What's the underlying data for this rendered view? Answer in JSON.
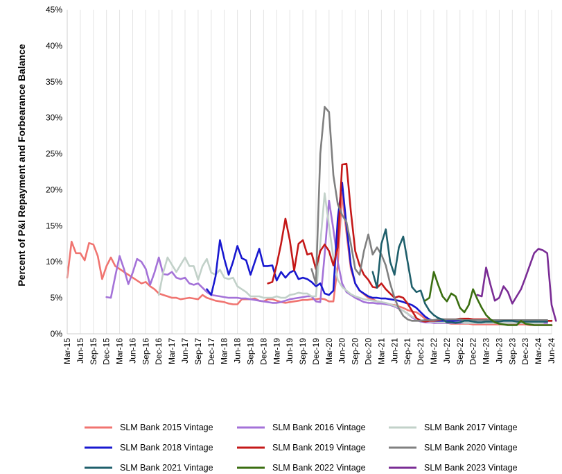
{
  "chart_data": {
    "type": "line",
    "title": "",
    "xlabel": "",
    "ylabel": "Percent of P&I Repayment and Forbearance  Balance",
    "ylim": [
      0,
      45
    ],
    "yticks": [
      "0%",
      "5%",
      "10%",
      "15%",
      "20%",
      "25%",
      "30%",
      "35%",
      "40%",
      "45%"
    ],
    "x_ticks": [
      "Mar-15",
      "Jun-15",
      "Sep-15",
      "Dec-15",
      "Mar-16",
      "Jun-16",
      "Sep-16",
      "Dec-16",
      "Mar-17",
      "Jun-17",
      "Sep-17",
      "Dec-17",
      "Mar-18",
      "Jun-18",
      "Sep-18",
      "Dec-18",
      "Mar-19",
      "Jun-19",
      "Sep-19",
      "Dec-19",
      "Mar-20",
      "Jun-20",
      "Sep-20",
      "Dec-20",
      "Mar-21",
      "Jun-21",
      "Sep-21",
      "Dec-21",
      "Mar-22",
      "Jun-22",
      "Sep-22",
      "Dec-22",
      "Mar-23",
      "Jun-23",
      "Sep-23",
      "Dec-23",
      "Mar-24",
      "Jun-24"
    ],
    "grid": "vertical",
    "legend_position": "bottom",
    "series": [
      {
        "name": "SLM Bank 2015 Vintage",
        "color": "#f07470",
        "start": "Mar-15",
        "values": [
          7.8,
          12.8,
          11.2,
          11.2,
          10.2,
          12.6,
          12.4,
          10.8,
          7.6,
          9.4,
          10.6,
          9.4,
          9.0,
          8.6,
          8.2,
          7.8,
          7.4,
          7.0,
          7.2,
          6.6,
          6.2,
          5.6,
          5.4,
          5.2,
          5.0,
          5.0,
          4.8,
          4.9,
          5.0,
          4.9,
          4.8,
          5.4,
          5.0,
          4.8,
          4.6,
          4.5,
          4.4,
          4.2,
          4.1,
          4.1,
          4.8,
          4.8,
          4.8,
          4.9,
          4.6,
          4.5,
          4.8,
          4.8,
          4.6,
          4.4,
          4.3,
          4.4,
          4.5,
          4.6,
          4.7,
          4.7,
          4.8,
          4.8,
          4.9,
          4.8,
          4.5,
          4.5,
          9.5,
          19.5,
          14.0,
          9.0,
          7.0,
          6.0,
          5.5,
          5.0,
          4.8,
          4.5,
          4.4,
          4.2,
          4.1,
          4.0,
          3.8,
          3.6,
          3.3,
          3.1,
          3.0,
          2.6,
          2.1,
          1.8,
          1.6,
          1.5,
          1.5,
          1.5,
          1.4,
          1.4,
          1.4,
          1.4,
          1.4,
          1.3,
          1.3,
          1.3,
          1.3,
          1.3,
          1.3,
          1.3,
          1.3,
          1.3,
          1.3,
          1.3,
          1.3,
          1.3,
          1.2,
          1.2,
          1.2,
          1.2,
          1.2,
          1.2
        ]
      },
      {
        "name": "SLM Bank 2016 Vintage",
        "color": "#a472d8",
        "start": "Dec-15",
        "values": [
          5.1,
          5.0,
          8.0,
          10.8,
          9.0,
          6.9,
          8.5,
          10.4,
          10.0,
          9.0,
          6.8,
          8.5,
          10.6,
          8.3,
          8.2,
          8.6,
          7.8,
          7.6,
          7.8,
          7.0,
          6.8,
          7.0,
          6.4,
          5.8,
          5.4,
          5.3,
          5.2,
          5.1,
          5.0,
          5.0,
          5.0,
          4.9,
          4.9,
          4.8,
          4.7,
          4.6,
          4.5,
          4.4,
          4.3,
          4.3,
          4.4,
          4.6,
          4.8,
          4.9,
          5.0,
          5.1,
          5.2,
          5.2,
          4.5,
          4.4,
          11.0,
          18.5,
          14.5,
          10.0,
          7.0,
          5.8,
          5.4,
          5.0,
          4.7,
          4.4,
          4.3,
          4.3,
          4.2,
          4.2,
          4.1,
          4.0,
          3.8,
          3.5,
          3.2,
          2.8,
          2.3,
          1.9,
          1.7,
          1.6,
          1.6,
          1.5,
          1.5,
          1.5,
          1.5,
          1.5,
          1.5,
          1.5,
          1.5,
          1.5,
          1.5,
          1.5,
          1.5,
          1.5,
          1.5,
          1.5,
          1.5,
          1.5,
          1.5,
          1.5,
          1.5,
          1.5,
          1.5,
          1.5,
          1.5,
          1.5,
          1.5,
          1.5
        ]
      },
      {
        "name": "SLM Bank 2017 Vintage",
        "color": "#c2d1c9",
        "start": "Dec-16",
        "values": [
          5.4,
          8.5,
          10.6,
          9.6,
          8.6,
          9.6,
          10.6,
          9.4,
          9.4,
          7.5,
          9.4,
          10.4,
          8.5,
          8.2,
          8.9,
          7.8,
          7.6,
          7.8,
          6.6,
          6.2,
          5.8,
          5.2,
          5.2,
          5.2,
          5.0,
          5.0,
          5.0,
          5.2,
          5.0,
          5.0,
          5.4,
          5.5,
          5.7,
          5.6,
          5.6,
          5.2,
          5.2,
          12.5,
          19.5,
          15.0,
          10.5,
          7.5,
          6.5,
          6.0,
          5.5,
          5.2,
          5.0,
          4.8,
          4.7,
          4.6,
          4.5,
          4.4,
          4.3,
          4.1,
          3.9,
          3.6,
          3.2,
          2.8,
          2.4,
          2.1,
          1.9,
          1.8,
          1.7,
          1.7,
          1.6,
          1.6,
          1.6,
          1.6,
          1.6,
          1.6,
          1.5,
          1.5,
          1.5,
          1.5,
          1.5,
          1.5,
          1.5,
          1.5,
          1.5,
          1.5,
          1.5,
          1.5,
          1.5,
          1.5,
          1.5,
          1.5,
          1.5,
          1.5,
          1.5
        ]
      },
      {
        "name": "SLM Bank 2018 Vintage",
        "color": "#1818d0",
        "start": "Nov-17",
        "values": [
          6.2,
          5.4,
          8.0,
          13.0,
          10.4,
          8.2,
          10.0,
          12.2,
          10.5,
          10.2,
          8.2,
          10.0,
          11.8,
          9.4,
          9.4,
          9.5,
          7.4,
          8.6,
          7.8,
          8.5,
          8.8,
          7.6,
          7.8,
          7.6,
          7.2,
          6.6,
          7.0,
          5.6,
          5.4,
          6.0,
          16.0,
          21.0,
          15.0,
          9.5,
          7.0,
          6.0,
          5.6,
          5.2,
          5.0,
          5.0,
          4.9,
          4.9,
          4.8,
          4.7,
          4.6,
          4.4,
          4.2,
          4.0,
          3.6,
          3.0,
          2.4,
          2.0,
          1.8,
          1.8,
          1.8,
          1.8,
          1.8,
          1.8,
          1.9,
          1.9,
          1.9,
          1.9,
          1.9,
          1.9,
          1.9,
          1.9,
          1.8,
          1.8,
          1.8,
          1.8,
          1.8,
          1.8,
          1.8,
          1.8,
          1.8,
          1.8,
          1.8,
          1.8,
          1.8,
          1.8
        ]
      },
      {
        "name": "SLM Bank 2019 Vintage",
        "color": "#c41818",
        "start": "Jan-19",
        "values": [
          7.0,
          7.2,
          9.6,
          12.5,
          16.0,
          13.0,
          8.8,
          12.5,
          13.0,
          11.0,
          11.2,
          9.0,
          11.5,
          12.4,
          11.5,
          9.5,
          12.0,
          23.5,
          23.6,
          17.0,
          11.5,
          9.5,
          8.2,
          7.5,
          6.5,
          6.4,
          7.0,
          6.2,
          5.6,
          5.0,
          5.2,
          5.0,
          4.2,
          3.2,
          2.2,
          1.8,
          1.7,
          1.8,
          1.8,
          1.9,
          2.0,
          2.0,
          2.0,
          2.0,
          2.1,
          2.1,
          2.1,
          2.0,
          2.0,
          2.0,
          2.0,
          1.9,
          1.9,
          1.9,
          1.9,
          1.9,
          1.9,
          1.9,
          1.9,
          1.9,
          1.9,
          1.9,
          1.8,
          1.8,
          1.8,
          1.8
        ]
      },
      {
        "name": "SLM Bank 2020 Vintage",
        "color": "#808080",
        "start": "Nov-19",
        "values": [
          9.0,
          7.0,
          25.0,
          31.5,
          30.8,
          22.0,
          18.0,
          16.5,
          15.5,
          12.5,
          9.0,
          8.2,
          11.5,
          13.8,
          11.0,
          12.0,
          11.0,
          9.5,
          7.0,
          5.0,
          3.5,
          2.5,
          2.0,
          1.8,
          1.8,
          1.8,
          1.9,
          1.9,
          1.9,
          2.0,
          2.0,
          2.0,
          2.0,
          2.0,
          2.0,
          1.9,
          1.9,
          1.9,
          1.9,
          1.9,
          1.9,
          1.9,
          1.9,
          1.9,
          1.9,
          1.9,
          1.9,
          1.9,
          1.9,
          1.9,
          1.9,
          1.9,
          1.9,
          1.9,
          1.9
        ]
      },
      {
        "name": "SLM Bank 2021 Vintage",
        "color": "#1f5f6b",
        "start": "Jan-21",
        "values": [
          8.6,
          6.4,
          12.5,
          14.5,
          10.0,
          8.2,
          12.0,
          13.5,
          10.0,
          6.5,
          5.8,
          6.0,
          4.2,
          3.2,
          2.6,
          2.2,
          2.0,
          1.6,
          1.6,
          1.5,
          1.6,
          1.8,
          1.8,
          1.7,
          1.6,
          1.6,
          1.7,
          1.7,
          1.7,
          1.7,
          1.8,
          1.8,
          1.8,
          1.7,
          1.7,
          1.7,
          1.7,
          1.7,
          1.7,
          1.7,
          1.7
        ]
      },
      {
        "name": "SLM Bank 2022 Vintage",
        "color": "#3a6e10",
        "start": "Jan-22",
        "values": [
          4.6,
          5.0,
          8.6,
          6.8,
          5.2,
          4.5,
          5.6,
          5.2,
          3.6,
          3.0,
          4.0,
          6.2,
          4.8,
          3.6,
          2.6,
          2.0,
          1.6,
          1.4,
          1.3,
          1.2,
          1.2,
          1.2,
          1.8,
          1.4,
          1.3,
          1.2,
          1.2,
          1.2,
          1.2,
          1.2
        ]
      },
      {
        "name": "SLM Bank 2023 Vintage",
        "color": "#7a2c95",
        "start": "Jan-23",
        "values": [
          5.4,
          5.2,
          9.2,
          6.8,
          4.6,
          5.0,
          6.6,
          5.8,
          4.2,
          5.2,
          6.2,
          7.8,
          9.5,
          11.2,
          11.8,
          11.6,
          11.2,
          4.0,
          1.8
        ]
      }
    ]
  }
}
